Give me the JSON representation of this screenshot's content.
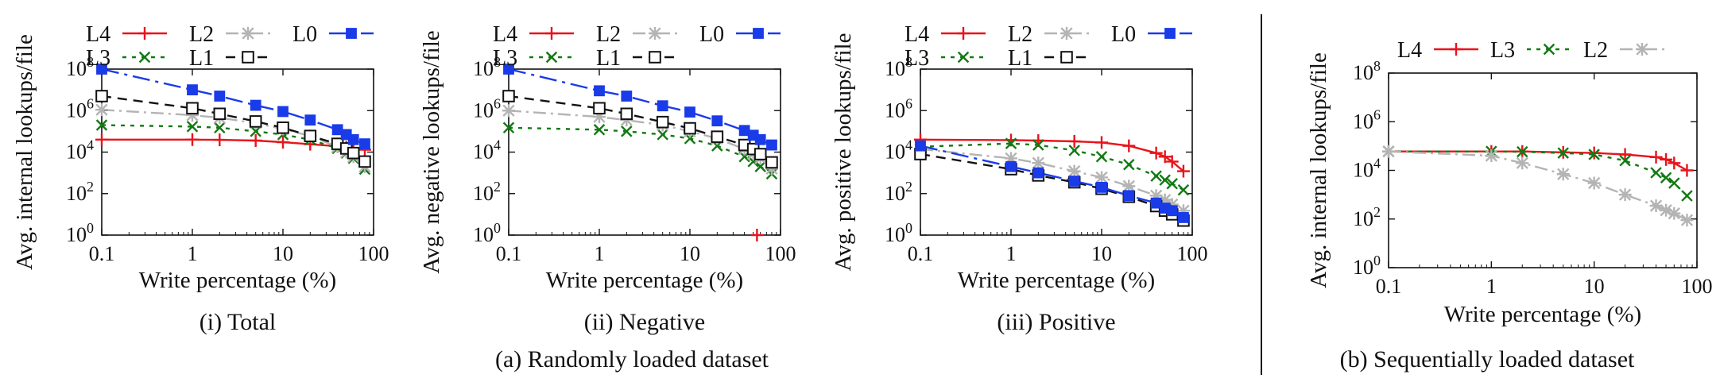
{
  "colors": {
    "L4": "#e8141c",
    "L3": "#127a12",
    "L2": "#b4b4b4",
    "L1": "#111111",
    "L0": "#1a3be8",
    "axis": "#111111"
  },
  "captions": {
    "a": "(a) Randomly loaded dataset",
    "b": "(b) Sequentially loaded dataset"
  },
  "chart_data": [
    {
      "type": "line",
      "subcaption": "(i) Total",
      "xlabel": "Write percentage (%)",
      "ylabel": "Avg. internal lookups/file",
      "xscale": "log",
      "yscale": "log",
      "xlim": [
        0.1,
        100
      ],
      "ylim": [
        1,
        100000000
      ],
      "xticks": [
        "0.1",
        "1",
        "10",
        "100"
      ],
      "yticks": [
        "10^0",
        "10^2",
        "10^4",
        "10^6",
        "10^8"
      ],
      "legend_position": "top",
      "x": [
        0.1,
        1,
        2,
        5,
        10,
        20,
        40,
        50,
        60,
        80
      ],
      "series": [
        {
          "name": "L4",
          "values": [
            40000,
            40000,
            39000,
            36000,
            30000,
            24000,
            19000,
            17000,
            15000,
            13000
          ]
        },
        {
          "name": "L3",
          "values": [
            200000,
            170000,
            150000,
            100000,
            70000,
            40000,
            15000,
            9000,
            5000,
            1500
          ]
        },
        {
          "name": "L2",
          "values": [
            1100000,
            600000,
            450000,
            250000,
            130000,
            60000,
            18000,
            10000,
            6000,
            2000
          ]
        },
        {
          "name": "L1",
          "values": [
            5000000,
            1300000,
            700000,
            300000,
            150000,
            60000,
            25000,
            15000,
            9000,
            3500
          ]
        },
        {
          "name": "L0",
          "values": [
            100000000,
            10000000,
            5000000,
            1800000,
            900000,
            350000,
            120000,
            70000,
            40000,
            25000
          ]
        }
      ]
    },
    {
      "type": "line",
      "subcaption": "(ii) Negative",
      "xlabel": "Write percentage (%)",
      "ylabel": "Avg. negative lookups/file",
      "xscale": "log",
      "yscale": "log",
      "xlim": [
        0.1,
        100
      ],
      "ylim": [
        1,
        100000000
      ],
      "xticks": [
        "0.1",
        "1",
        "10",
        "100"
      ],
      "yticks": [
        "10^0",
        "10^2",
        "10^4",
        "10^6",
        "10^8"
      ],
      "legend_position": "top",
      "x": [
        0.1,
        1,
        2,
        5,
        10,
        20,
        40,
        50,
        60,
        80
      ],
      "series": [
        {
          "name": "L4",
          "x": [
            55
          ],
          "values": [
            1
          ]
        },
        {
          "name": "L3",
          "values": [
            150000,
            120000,
            100000,
            70000,
            45000,
            20000,
            6000,
            3500,
            2000,
            900
          ]
        },
        {
          "name": "L2",
          "values": [
            1000000,
            500000,
            350000,
            200000,
            100000,
            45000,
            14000,
            8000,
            5000,
            1600
          ]
        },
        {
          "name": "L1",
          "values": [
            5000000,
            1300000,
            700000,
            280000,
            140000,
            55000,
            22000,
            14000,
            8000,
            3200
          ]
        },
        {
          "name": "L0",
          "values": [
            100000000,
            9000000,
            5000000,
            1700000,
            850000,
            320000,
            110000,
            65000,
            40000,
            22000
          ]
        }
      ]
    },
    {
      "type": "line",
      "subcaption": "(iii) Positive",
      "xlabel": "Write percentage (%)",
      "ylabel": "Avg. positive lookups/file",
      "xscale": "log",
      "yscale": "log",
      "xlim": [
        0.1,
        100
      ],
      "ylim": [
        1,
        100000000
      ],
      "xticks": [
        "0.1",
        "1",
        "10",
        "100"
      ],
      "yticks": [
        "10^0",
        "10^2",
        "10^4",
        "10^6",
        "10^8"
      ],
      "legend_position": "top",
      "x": [
        0.1,
        1,
        2,
        5,
        10,
        20,
        40,
        50,
        60,
        80
      ],
      "series": [
        {
          "name": "L4",
          "values": [
            40000,
            38000,
            36000,
            33000,
            29000,
            20000,
            9000,
            6000,
            3500,
            1200
          ]
        },
        {
          "name": "L3",
          "values": [
            18000,
            26000,
            22000,
            12000,
            6000,
            2500,
            700,
            450,
            300,
            150
          ]
        },
        {
          "name": "L2",
          "values": [
            14000,
            5000,
            3000,
            1200,
            600,
            230,
            80,
            50,
            30,
            15
          ]
        },
        {
          "name": "L1",
          "values": [
            8000,
            1500,
            750,
            350,
            170,
            70,
            25,
            15,
            10,
            5
          ]
        },
        {
          "name": "L0",
          "values": [
            20000,
            2000,
            1000,
            400,
            200,
            80,
            35,
            20,
            15,
            7
          ]
        }
      ]
    },
    {
      "type": "line",
      "subcaption": "",
      "xlabel": "Write percentage (%)",
      "ylabel": "Avg. internal lookups/file",
      "xscale": "log",
      "yscale": "log",
      "xlim": [
        0.1,
        100
      ],
      "ylim": [
        1,
        100000000
      ],
      "xticks": [
        "0.1",
        "1",
        "10",
        "100"
      ],
      "yticks": [
        "10^0",
        "10^2",
        "10^4",
        "10^6",
        "10^8"
      ],
      "legend_position": "top",
      "x": [
        0.1,
        1,
        2,
        5,
        10,
        20,
        40,
        50,
        60,
        80
      ],
      "series": [
        {
          "name": "L4",
          "values": [
            60000,
            60000,
            60000,
            55000,
            52000,
            45000,
            35000,
            28000,
            20000,
            10000
          ]
        },
        {
          "name": "L3",
          "values": [
            60000,
            60000,
            58000,
            52000,
            45000,
            25000,
            8000,
            5000,
            3000,
            900
          ]
        },
        {
          "name": "L2",
          "values": [
            60000,
            40000,
            20000,
            7000,
            3000,
            1000,
            350,
            230,
            170,
            90
          ]
        }
      ]
    }
  ]
}
